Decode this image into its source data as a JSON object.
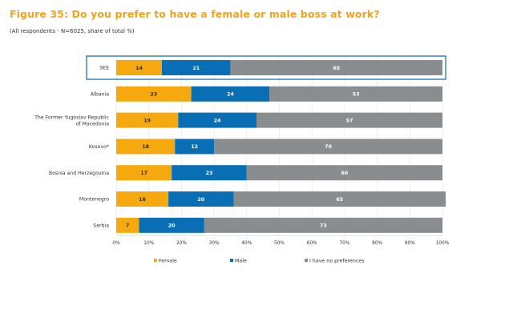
{
  "figure": {
    "title": "Figure 35: Do you prefer to have a female or male boss at work?",
    "subtitle": "(All respondents - N=6025, share of total %)"
  },
  "colors": {
    "female": "#f5a90f",
    "male": "#0a6eb4",
    "no_preference": "#8a8d90",
    "highlight_border": "#1f6fa8"
  },
  "chart_data": {
    "type": "bar",
    "orientation": "horizontal",
    "stacked": true,
    "categories": [
      "SEE",
      "Albania",
      "The Former Yugoslav Republic of Macedonia",
      "Kosovo*",
      "Bosnia and Herzegovina",
      "Montenegro",
      "Serbia"
    ],
    "highlighted_category": "SEE",
    "series": [
      {
        "name": "Female",
        "values": [
          14,
          23,
          19,
          18,
          17,
          16,
          7
        ]
      },
      {
        "name": "Male",
        "values": [
          21,
          24,
          24,
          12,
          23,
          20,
          20
        ]
      },
      {
        "name": "I have no preferences",
        "values": [
          65,
          53,
          57,
          70,
          60,
          65,
          73
        ]
      }
    ],
    "xlim": [
      0,
      100
    ],
    "xticks": [
      "0%",
      "10%",
      "20%",
      "30%",
      "40%",
      "50%",
      "60%",
      "70%",
      "80%",
      "90%",
      "100%"
    ],
    "legend_position": "bottom"
  }
}
